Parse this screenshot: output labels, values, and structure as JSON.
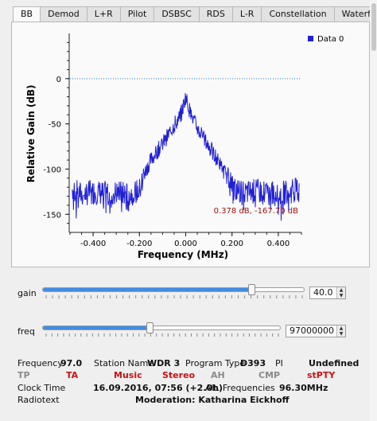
{
  "tabs": [
    "BB",
    "Demod",
    "L+R",
    "Pilot",
    "DSBSC",
    "RDS",
    "L-R",
    "Constellation",
    "Waterfall"
  ],
  "active_tab": "BB",
  "plot": {
    "ylabel": "Relative Gain (dB)",
    "xlabel": "Frequency (MHz)",
    "yticks": [
      "0",
      "-50",
      "-100",
      "-150"
    ],
    "xticks": [
      "-0.400",
      "-0.200",
      "0.000",
      "0.200",
      "0.400"
    ],
    "legend": "Data 0",
    "cursor_readout": "0.378 dB, -167.70 dB",
    "line_color": "#1f1fd6",
    "readout_color": "#a01010"
  },
  "chart_data": {
    "type": "line",
    "title": "",
    "xlabel": "Frequency (MHz)",
    "ylabel": "Relative Gain (dB)",
    "xlim": [
      -0.5,
      0.5
    ],
    "ylim": [
      -170,
      50
    ],
    "reference_line_db": 0,
    "series": [
      {
        "name": "Data 0",
        "x": [
          -0.49,
          -0.45,
          -0.4,
          -0.35,
          -0.3,
          -0.25,
          -0.2,
          -0.18,
          -0.15,
          -0.1,
          -0.05,
          -0.02,
          0.0,
          0.02,
          0.05,
          0.1,
          0.15,
          0.18,
          0.2,
          0.25,
          0.3,
          0.35,
          0.4,
          0.45,
          0.49
        ],
        "y": [
          -122,
          -128,
          -125,
          -127,
          -126,
          -128,
          -124,
          -105,
          -90,
          -72,
          -52,
          -40,
          -20,
          -38,
          -55,
          -75,
          -95,
          -110,
          -120,
          -127,
          -124,
          -126,
          -128,
          -125,
          -122
        ]
      }
    ],
    "legend_position": "top-right"
  },
  "controls": {
    "gain_label": "gain",
    "gain_value": "40.0",
    "gain_fraction": 0.8,
    "freq_label": "freq",
    "freq_value": "97000000",
    "freq_fraction": 0.45
  },
  "info": {
    "frequency_label": "Frequency",
    "frequency_value": "97.0",
    "station_label": "Station Name",
    "station_value": "WDR 3",
    "program_type_label": "Program Type",
    "program_type_value": "D393",
    "pi_label": "PI",
    "pi_value": "Undefined",
    "flags": [
      "TP",
      "TA",
      "Music",
      "Stereo",
      "AH",
      "CMP",
      "stPTY"
    ],
    "clock_label": "Clock Time",
    "clock_value": "16.09.2016, 07:56 (+2.0h)",
    "alt_freq_label": "Alt. Frequencies",
    "alt_freq_value": "96.30MHz",
    "radiotext_label": "Radiotext",
    "radiotext_value": "Moderation: Katharina Eickhoff"
  },
  "colors": {
    "flag_off": "#8a8a8a",
    "flag_on": "#cc1111",
    "slider_fill": "#3f8ee3"
  }
}
